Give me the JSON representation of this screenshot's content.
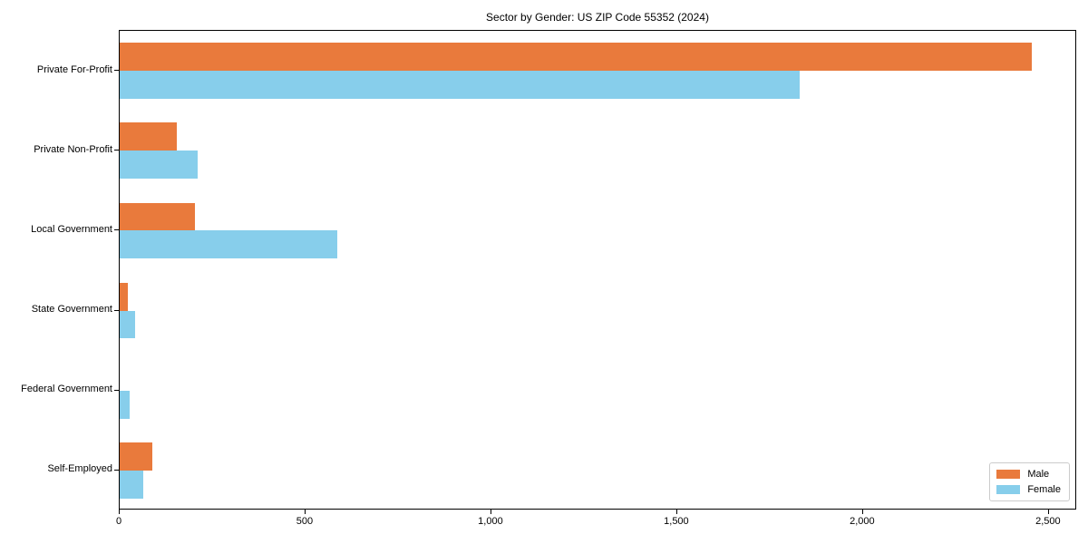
{
  "chart_data": {
    "type": "bar",
    "orientation": "horizontal",
    "title": "Sector by Gender: US ZIP Code 55352 (2024)",
    "categories": [
      "Private For-Profit",
      "Private Non-Profit",
      "Local Government",
      "State Government",
      "Federal Government",
      "Self-Employed"
    ],
    "series": [
      {
        "name": "Male",
        "color": "#E97A3C",
        "values": [
          2453,
          154,
          203,
          21,
          0,
          89
        ]
      },
      {
        "name": "Female",
        "color": "#87CEEB",
        "values": [
          1830,
          211,
          585,
          42,
          26,
          63
        ]
      }
    ],
    "xlabel": "",
    "ylabel": "",
    "xlim": [
      0,
      2576
    ],
    "xticks": [
      0,
      500,
      1000,
      1500,
      2000,
      2500
    ],
    "xtick_labels": [
      "0",
      "500",
      "1,000",
      "1,500",
      "2,000",
      "2,500"
    ],
    "grid": false,
    "legend": {
      "position": "lower right",
      "entries": [
        "Male",
        "Female"
      ]
    },
    "colors": {
      "axis": "#000000",
      "legend_border": "#cccccc",
      "background": "#ffffff"
    }
  }
}
